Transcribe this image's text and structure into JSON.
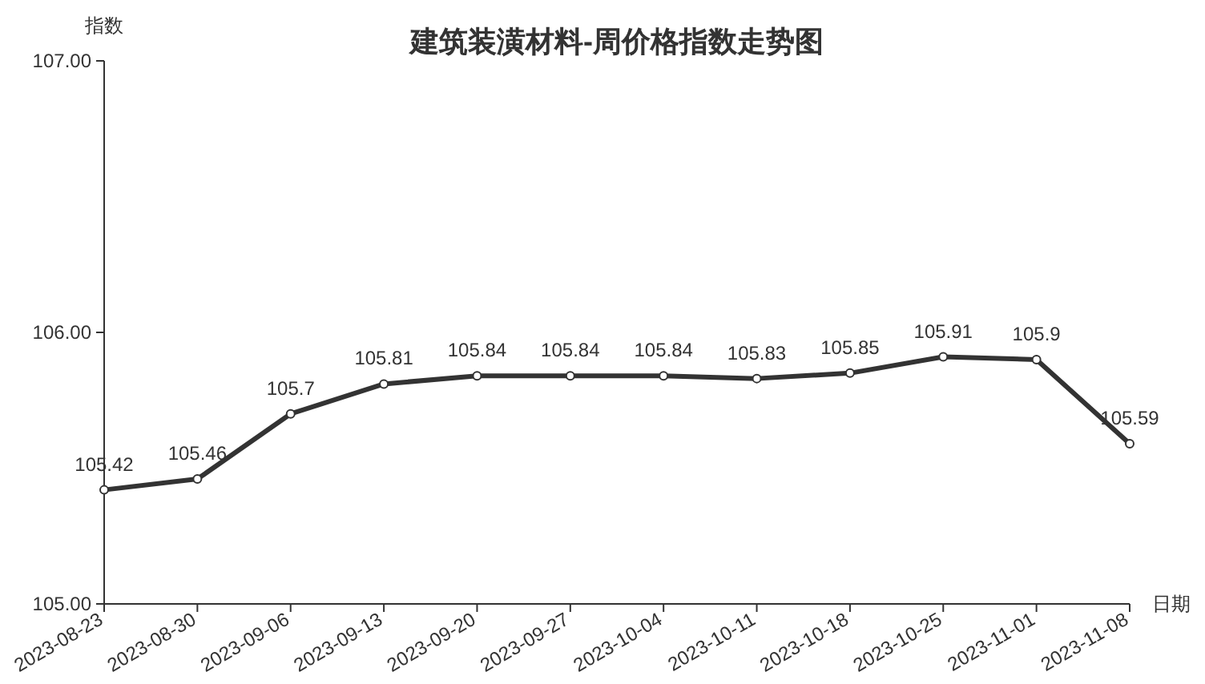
{
  "chart_data": {
    "type": "line",
    "title": "建筑装潢材料-周价格指数走势图",
    "xlabel": "日期",
    "ylabel": "指数",
    "categories": [
      "2023-08-23",
      "2023-08-30",
      "2023-09-06",
      "2023-09-13",
      "2023-09-20",
      "2023-09-27",
      "2023-10-04",
      "2023-10-11",
      "2023-10-18",
      "2023-10-25",
      "2023-11-01",
      "2023-11-08"
    ],
    "series": [
      {
        "color": "#333333",
        "values": [
          105.42,
          105.46,
          105.7,
          105.81,
          105.84,
          105.84,
          105.84,
          105.83,
          105.85,
          105.91,
          105.9,
          105.59
        ]
      }
    ],
    "ylim": [
      105,
      107
    ],
    "yticks": [
      {
        "value": 105,
        "label": "105.00"
      },
      {
        "value": 106,
        "label": "106.00"
      },
      {
        "value": 107,
        "label": "107.00"
      }
    ],
    "data_labels": true,
    "marker": "circle",
    "grid": false
  }
}
